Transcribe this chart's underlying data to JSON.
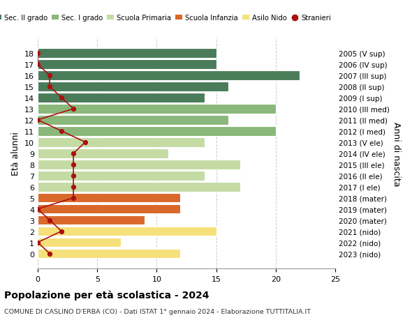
{
  "ages": [
    18,
    17,
    16,
    15,
    14,
    13,
    12,
    11,
    10,
    9,
    8,
    7,
    6,
    5,
    4,
    3,
    2,
    1,
    0
  ],
  "right_labels": [
    "2005 (V sup)",
    "2006 (IV sup)",
    "2007 (III sup)",
    "2008 (II sup)",
    "2009 (I sup)",
    "2010 (III med)",
    "2011 (II med)",
    "2012 (I med)",
    "2013 (V ele)",
    "2014 (IV ele)",
    "2015 (III ele)",
    "2016 (II ele)",
    "2017 (I ele)",
    "2018 (mater)",
    "2019 (mater)",
    "2020 (mater)",
    "2021 (nido)",
    "2022 (nido)",
    "2023 (nido)"
  ],
  "bar_values": [
    15,
    15,
    22,
    16,
    14,
    20,
    16,
    20,
    14,
    11,
    17,
    14,
    17,
    12,
    12,
    9,
    15,
    7,
    12
  ],
  "bar_colors": [
    "#4a7c59",
    "#4a7c59",
    "#4a7c59",
    "#4a7c59",
    "#4a7c59",
    "#8ab87a",
    "#8ab87a",
    "#8ab87a",
    "#c5dba4",
    "#c5dba4",
    "#c5dba4",
    "#c5dba4",
    "#c5dba4",
    "#d9682a",
    "#d9682a",
    "#d9682a",
    "#f5e07a",
    "#f5e07a",
    "#f5e07a"
  ],
  "stranieri_values": [
    0,
    0,
    1,
    1,
    2,
    3,
    0,
    2,
    4,
    3,
    3,
    3,
    3,
    3,
    0,
    1,
    2,
    0,
    1
  ],
  "title": "Popolazione per età scolastica - 2024",
  "subtitle": "COMUNE DI CASLINO D'ERBA (CO) - Dati ISTAT 1° gennaio 2024 - Elaborazione TUTTITALIA.IT",
  "ylabel_left": "Età alunni",
  "ylabel_right": "Anni di nascita",
  "xlim": [
    0,
    25
  ],
  "legend_labels": [
    "Sec. II grado",
    "Sec. I grado",
    "Scuola Primaria",
    "Scuola Infanzia",
    "Asilo Nido",
    "Stranieri"
  ],
  "legend_colors": [
    "#4a7c59",
    "#8ab87a",
    "#c5dba4",
    "#d9682a",
    "#f5e07a",
    "#cc2222"
  ],
  "color_stranieri": "#aa1111",
  "bg_color": "#ffffff",
  "grid_color": "#cccccc"
}
